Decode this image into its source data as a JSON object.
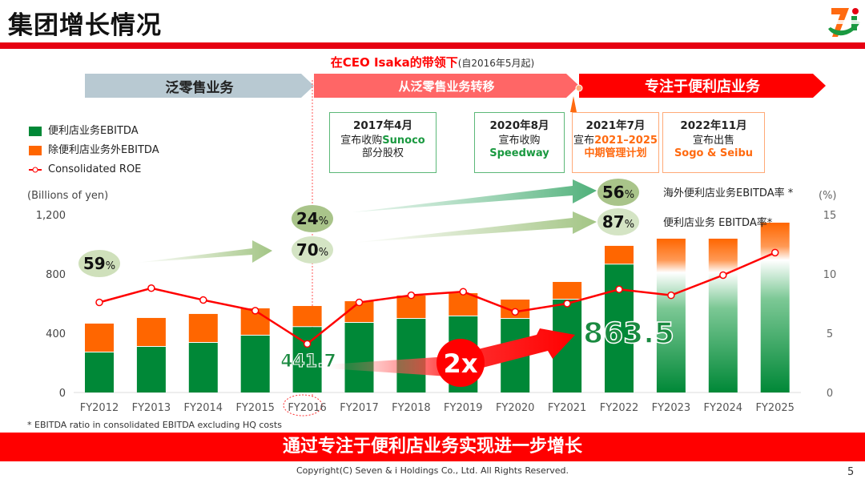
{
  "header": {
    "title": "集团增长情况",
    "logo_text": "SEVEN & i HOLDINGS"
  },
  "leadership": {
    "main": "在CEO Isaka的带领下",
    "sub": "(自2016年5月起)"
  },
  "phases": [
    "泛零售业务",
    "从泛零售业务转移",
    "专注于便利店业务"
  ],
  "milestones": [
    {
      "date": "2017年4月",
      "line1": "宣布收购",
      "highlight": "Sunoco",
      "line2": "部分股权",
      "color": "#1a9940"
    },
    {
      "date": "2020年8月",
      "line1": "宣布收购",
      "highlight": "Speedway",
      "line2": "",
      "color": "#1a9940"
    },
    {
      "date": "2021年7月",
      "line1": "宣布",
      "highlight": "2021–2025",
      "line2": "中期管理计划",
      "color": "#ff6a10"
    },
    {
      "date": "2022年11月",
      "line1": "宣布出售",
      "highlight": "Sogo & Seibu",
      "line2": "",
      "color": "#ff6a10"
    }
  ],
  "ratios": {
    "r59": "59",
    "r24": "24",
    "r70": "70",
    "r56": "56",
    "r87": "87",
    "pct": "%",
    "overseas_label": "海外便利店业务EBITDA率 *",
    "cvs_label": "便利店业务 EBITDA率*"
  },
  "callouts": {
    "v2016": "441.7",
    "v2022": "863.5",
    "growth": "2x"
  },
  "footnote": "* EBITDA ratio in consolidated EBITDA excluding HQ costs",
  "banner": "通过专注于便利店业务实现进一步增长",
  "copyright": "Copyright(C) Seven & i Holdings Co., Ltd. All Rights Reserved.",
  "page": "5",
  "chart_data": {
    "type": "bar",
    "stacked": true,
    "categories": [
      "FY2012",
      "FY2013",
      "FY2014",
      "FY2015",
      "FY2016",
      "FY2017",
      "FY2018",
      "FY2019",
      "FY2020",
      "FY2021",
      "FY2022",
      "FY2023",
      "FY2024",
      "FY2025"
    ],
    "ylabel": "(Billions of yen)",
    "y2label": "(%)",
    "ylim": [
      0,
      1200
    ],
    "yticks": [
      "0",
      "400",
      "800",
      "1,200"
    ],
    "y2lim": [
      0,
      15
    ],
    "y2ticks": [
      "0",
      "5",
      "10",
      "15"
    ],
    "series": [
      {
        "name": "便利店业务EBITDA",
        "kind": "bar",
        "color": "#008837",
        "values": [
          270,
          308,
          335,
          384,
          441.7,
          470,
          497,
          514,
          497,
          627,
          863.5,
          null,
          null,
          null
        ]
      },
      {
        "name": "除便利店业务外EBITDA",
        "kind": "bar",
        "color": "#ff6600",
        "values": [
          195,
          195,
          195,
          184,
          142,
          146,
          157,
          156,
          130,
          119,
          126,
          null,
          null,
          null
        ]
      },
      {
        "name": "Consolidated ROE",
        "kind": "line",
        "axis": "right",
        "color": "#ff0000",
        "values": [
          7.6,
          8.8,
          7.8,
          6.9,
          4.1,
          7.6,
          8.2,
          8.5,
          6.8,
          7.5,
          8.7,
          8.2,
          9.9,
          11.8
        ]
      }
    ],
    "projected_totals": {
      "FY2023": 1038,
      "FY2024": 1038,
      "FY2025": 1146
    },
    "highlight_category": "FY2016",
    "legend": "top-left"
  }
}
